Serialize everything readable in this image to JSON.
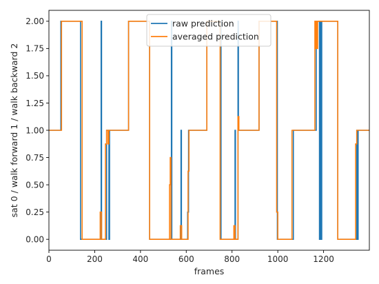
{
  "chart_data": {
    "type": "line",
    "xlabel": "frames",
    "ylabel": "sat 0 / walk forward 1 / walk backward 2",
    "xlim": [
      0,
      1400
    ],
    "ylim": [
      -0.1,
      2.1
    ],
    "xticks": [
      0,
      200,
      400,
      600,
      800,
      1000,
      1200
    ],
    "yticks": [
      0.0,
      0.25,
      0.5,
      0.75,
      1.0,
      1.25,
      1.5,
      1.75,
      2.0
    ],
    "xtick_labels": [
      "0",
      "200",
      "400",
      "600",
      "800",
      "1000",
      "1200"
    ],
    "ytick_labels": [
      "0.00",
      "0.25",
      "0.50",
      "0.75",
      "1.00",
      "1.25",
      "1.50",
      "1.75",
      "2.00"
    ],
    "grid": false,
    "legend_position": "top-center",
    "series": [
      {
        "name": "raw prediction",
        "color": "#1f77b4",
        "points": [
          [
            0,
            1
          ],
          [
            52,
            1
          ],
          [
            52,
            2
          ],
          [
            138,
            2
          ],
          [
            138,
            0
          ],
          [
            228,
            0
          ],
          [
            228,
            2
          ],
          [
            230,
            2
          ],
          [
            230,
            0
          ],
          [
            252,
            0
          ],
          [
            252,
            1
          ],
          [
            262,
            1
          ],
          [
            262,
            0
          ],
          [
            265,
            0
          ],
          [
            265,
            1
          ],
          [
            348,
            1
          ],
          [
            348,
            2
          ],
          [
            440,
            2
          ],
          [
            440,
            0
          ],
          [
            535,
            0
          ],
          [
            535,
            2
          ],
          [
            537,
            2
          ],
          [
            537,
            0
          ],
          [
            577,
            0
          ],
          [
            577,
            1
          ],
          [
            579,
            1
          ],
          [
            579,
            0
          ],
          [
            606,
            0
          ],
          [
            606,
            0.25
          ],
          [
            610,
            0.25
          ],
          [
            610,
            1
          ],
          [
            690,
            1
          ],
          [
            690,
            2
          ],
          [
            752,
            2
          ],
          [
            752,
            0
          ],
          [
            813,
            0
          ],
          [
            813,
            1
          ],
          [
            815,
            1
          ],
          [
            815,
            0
          ],
          [
            826,
            0
          ],
          [
            826,
            2
          ],
          [
            828,
            2
          ],
          [
            828,
            1
          ],
          [
            918,
            1
          ],
          [
            918,
            2
          ],
          [
            998,
            2
          ],
          [
            998,
            0
          ],
          [
            1068,
            0
          ],
          [
            1068,
            1
          ],
          [
            1168,
            1
          ],
          [
            1168,
            2
          ],
          [
            1182,
            2
          ],
          [
            1182,
            0
          ],
          [
            1186,
            0
          ],
          [
            1186,
            2
          ],
          [
            1189,
            2
          ],
          [
            1189,
            0
          ],
          [
            1192,
            0
          ],
          [
            1192,
            2
          ],
          [
            1262,
            2
          ],
          [
            1262,
            0
          ],
          [
            1345,
            0
          ],
          [
            1345,
            1
          ],
          [
            1348,
            1
          ],
          [
            1348,
            0
          ],
          [
            1351,
            0
          ],
          [
            1351,
            1
          ],
          [
            1400,
            1
          ]
        ]
      },
      {
        "name": "averaged prediction",
        "color": "#ff7f0e",
        "points": [
          [
            0,
            1
          ],
          [
            55,
            1
          ],
          [
            55,
            2
          ],
          [
            145,
            2
          ],
          [
            145,
            0
          ],
          [
            224,
            0
          ],
          [
            224,
            0.25
          ],
          [
            230,
            0.25
          ],
          [
            230,
            0
          ],
          [
            247,
            0
          ],
          [
            247,
            0.875
          ],
          [
            252,
            0.875
          ],
          [
            252,
            1
          ],
          [
            258,
            1
          ],
          [
            258,
            0.875
          ],
          [
            262,
            0.875
          ],
          [
            262,
            1
          ],
          [
            348,
            1
          ],
          [
            348,
            2
          ],
          [
            440,
            2
          ],
          [
            440,
            0
          ],
          [
            527,
            0
          ],
          [
            527,
            0.5
          ],
          [
            530,
            0.5
          ],
          [
            530,
            0.75
          ],
          [
            533,
            0.75
          ],
          [
            533,
            0
          ],
          [
            574,
            0
          ],
          [
            574,
            0.125
          ],
          [
            580,
            0.125
          ],
          [
            580,
            0
          ],
          [
            608,
            0
          ],
          [
            608,
            0.625
          ],
          [
            612,
            0.625
          ],
          [
            612,
            1
          ],
          [
            690,
            1
          ],
          [
            690,
            2
          ],
          [
            748,
            2
          ],
          [
            748,
            0
          ],
          [
            808,
            0
          ],
          [
            808,
            0.125
          ],
          [
            813,
            0.125
          ],
          [
            813,
            0
          ],
          [
            826,
            0
          ],
          [
            826,
            1.125
          ],
          [
            830,
            1.125
          ],
          [
            830,
            1
          ],
          [
            918,
            1
          ],
          [
            918,
            2
          ],
          [
            995,
            2
          ],
          [
            995,
            0.25
          ],
          [
            1000,
            0.25
          ],
          [
            1000,
            0
          ],
          [
            1062,
            0
          ],
          [
            1062,
            1
          ],
          [
            1162,
            1
          ],
          [
            1162,
            2
          ],
          [
            1164,
            2
          ],
          [
            1164,
            1.75
          ],
          [
            1168,
            1.75
          ],
          [
            1168,
            2
          ],
          [
            1171,
            2
          ],
          [
            1171,
            1.75
          ],
          [
            1174,
            1.75
          ],
          [
            1174,
            2
          ],
          [
            1262,
            2
          ],
          [
            1262,
            0
          ],
          [
            1340,
            0
          ],
          [
            1340,
            0.875
          ],
          [
            1345,
            0.875
          ],
          [
            1345,
            1
          ],
          [
            1400,
            1
          ]
        ]
      }
    ]
  }
}
